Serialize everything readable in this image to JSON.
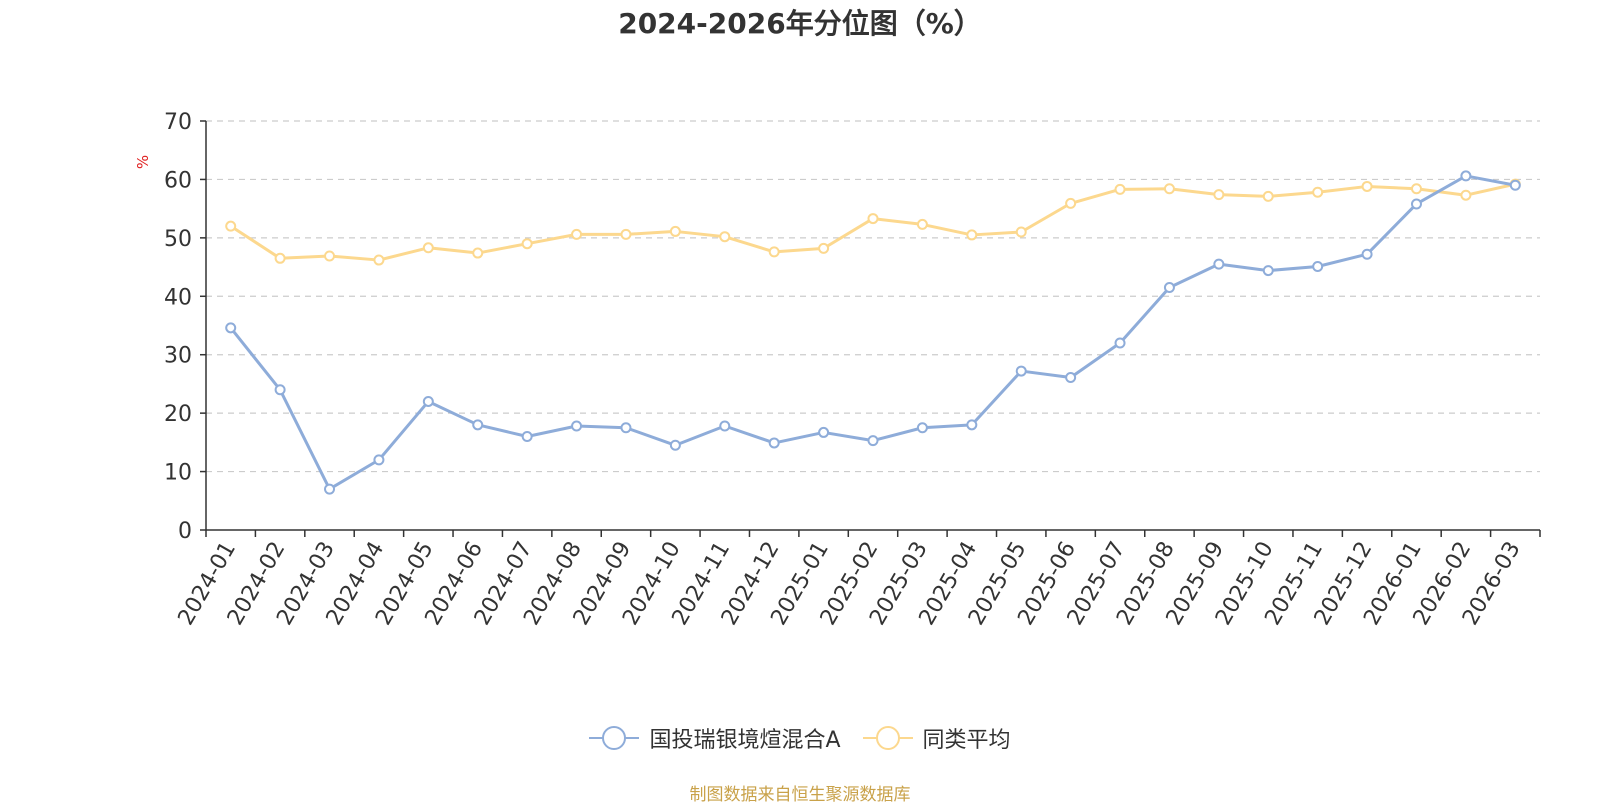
{
  "chart_data": {
    "type": "line",
    "title": "2024-2026年分位图（%）",
    "ylabel": "%",
    "xlabel": "",
    "ylim": [
      0,
      70
    ],
    "yticks": [
      0,
      10,
      20,
      30,
      40,
      50,
      60,
      70
    ],
    "grid": true,
    "legend_position": "bottom-center",
    "categories": [
      "2024-01",
      "2024-02",
      "2024-03",
      "2024-04",
      "2024-05",
      "2024-06",
      "2024-07",
      "2024-08",
      "2024-09",
      "2024-10",
      "2024-11",
      "2024-12",
      "2025-01",
      "2025-02",
      "2025-03",
      "2025-04",
      "2025-05",
      "2025-06",
      "2025-07",
      "2025-08",
      "2025-09",
      "2025-10",
      "2025-11",
      "2025-12",
      "2026-01",
      "2026-02",
      "2026-03"
    ],
    "series": [
      {
        "name": "国投瑞银境煊混合A",
        "color": "#8eacd9",
        "values": [
          34.6,
          24.0,
          7.0,
          12.0,
          22.0,
          18.0,
          16.0,
          17.8,
          17.5,
          14.5,
          17.8,
          14.9,
          16.7,
          15.3,
          17.5,
          18.0,
          27.2,
          26.1,
          32.0,
          41.5,
          45.5,
          44.4,
          45.1,
          47.2,
          55.8,
          60.6,
          59.0
        ]
      },
      {
        "name": "同类平均",
        "color": "#fcd88e",
        "values": [
          52.0,
          46.5,
          46.9,
          46.2,
          48.3,
          47.4,
          49.0,
          50.6,
          50.6,
          51.1,
          50.2,
          47.6,
          48.2,
          53.3,
          52.3,
          50.5,
          51.0,
          55.9,
          58.3,
          58.4,
          57.4,
          57.1,
          57.8,
          58.8,
          58.4,
          57.3,
          59.2
        ]
      }
    ]
  },
  "footer": {
    "source_text": "制图数据来自恒生聚源数据库",
    "source_color": "#c9a24a"
  }
}
